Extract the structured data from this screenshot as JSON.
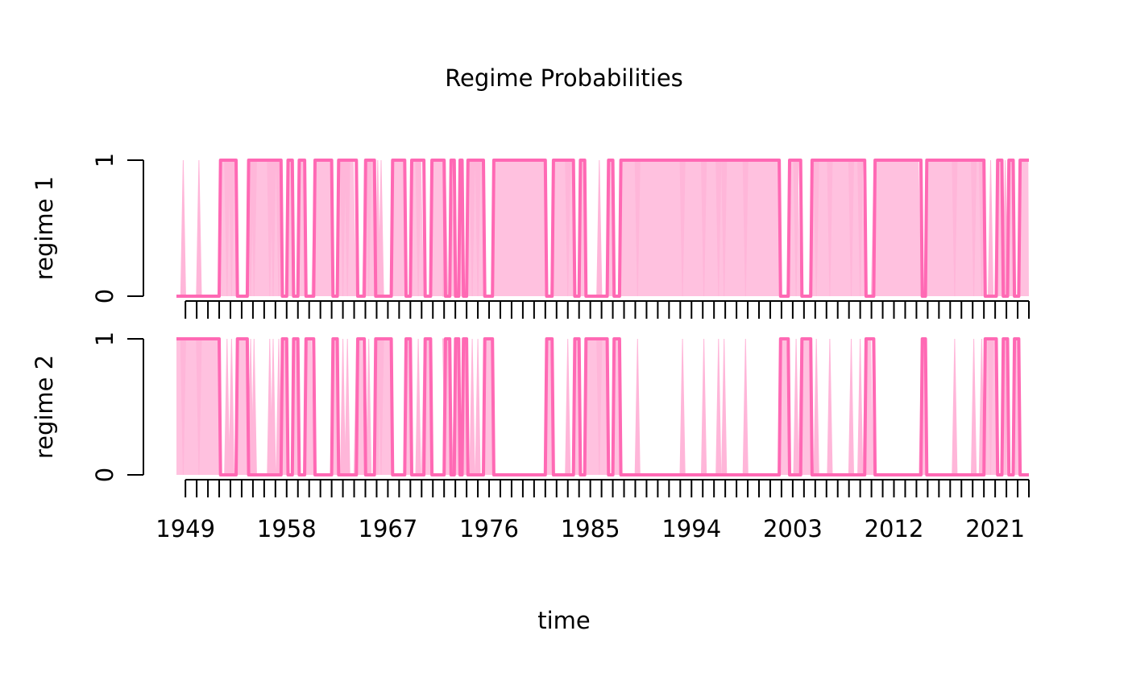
{
  "chart_data": {
    "type": "area",
    "title": "Regime Probabilities",
    "xlabel": "time",
    "x_range": [
      1948.2,
      2024.0
    ],
    "x_ticks": [
      1949,
      1958,
      1967,
      1976,
      1985,
      1994,
      2003,
      2012,
      2021
    ],
    "minor_tick_step": 1,
    "colors": {
      "line": "#ff69b4",
      "band": "#ffb6d9"
    },
    "panels": [
      {
        "ylabel": "regime  1",
        "ylim": [
          0,
          1
        ],
        "y_ticks": [
          0,
          1
        ],
        "intervals": [
          [
            1952.0,
            1953.5,
            1
          ],
          [
            1954.5,
            1957.5,
            1
          ],
          [
            1958.0,
            1958.5,
            1
          ],
          [
            1959.0,
            1959.6,
            1
          ],
          [
            1960.4,
            1962.0,
            1
          ],
          [
            1962.5,
            1964.2,
            1
          ],
          [
            1964.9,
            1965.8,
            1
          ],
          [
            1967.3,
            1968.5,
            1
          ],
          [
            1969.0,
            1970.2,
            1
          ],
          [
            1970.8,
            1972.0,
            1
          ],
          [
            1972.5,
            1972.9,
            1
          ],
          [
            1973.3,
            1973.6,
            1
          ],
          [
            1974.0,
            1975.5,
            1
          ],
          [
            1976.3,
            1981.0,
            1
          ],
          [
            1981.6,
            1983.5,
            1
          ],
          [
            1984.0,
            1984.5,
            1
          ],
          [
            1986.5,
            1987.0,
            1
          ],
          [
            1987.6,
            2001.8,
            1
          ],
          [
            2002.6,
            2003.7,
            1
          ],
          [
            2004.6,
            2009.4,
            1
          ],
          [
            2010.2,
            2014.4,
            1
          ],
          [
            2014.8,
            2020.0,
            1
          ],
          [
            2021.1,
            2021.6,
            1
          ],
          [
            2022.1,
            2022.6,
            1
          ],
          [
            2023.1,
            2024.0,
            1
          ]
        ],
        "band_spikes": [
          [
            1948.8,
            1
          ],
          [
            1950.2,
            1
          ],
          [
            1952.7,
            0
          ],
          [
            1953.1,
            0
          ],
          [
            1954.8,
            0
          ],
          [
            1955.1,
            0
          ],
          [
            1956.5,
            0
          ],
          [
            1956.8,
            0
          ],
          [
            1957.3,
            0
          ],
          [
            1963.0,
            0
          ],
          [
            1963.4,
            0
          ],
          [
            1965.3,
            0
          ],
          [
            1966.1,
            1
          ],
          [
            1966.4,
            1
          ],
          [
            1969.7,
            0
          ],
          [
            1972.1,
            1
          ],
          [
            1974.5,
            0
          ],
          [
            1975.0,
            0
          ],
          [
            1983.0,
            0
          ],
          [
            1985.8,
            1
          ],
          [
            1989.2,
            0
          ],
          [
            1993.2,
            0
          ],
          [
            1995.1,
            0
          ],
          [
            1996.4,
            0
          ],
          [
            1996.9,
            0
          ],
          [
            1998.8,
            0
          ],
          [
            2003.3,
            0
          ],
          [
            2005.1,
            0
          ],
          [
            2006.3,
            0
          ],
          [
            2008.2,
            0
          ],
          [
            2009.0,
            0
          ],
          [
            2017.4,
            0
          ],
          [
            2019.1,
            0
          ],
          [
            2019.8,
            0
          ],
          [
            2020.6,
            1
          ],
          [
            2021.9,
            1
          ]
        ]
      },
      {
        "ylabel": "regime  2",
        "ylim": [
          0,
          1
        ],
        "y_ticks": [
          0,
          1
        ],
        "intervals": [
          [
            1948.2,
            1952.0,
            1
          ],
          [
            1953.5,
            1954.5,
            1
          ],
          [
            1957.5,
            1958.0,
            1
          ],
          [
            1958.5,
            1959.0,
            1
          ],
          [
            1959.6,
            1960.4,
            1
          ],
          [
            1962.0,
            1962.5,
            1
          ],
          [
            1964.2,
            1964.9,
            1
          ],
          [
            1965.8,
            1967.3,
            1
          ],
          [
            1968.5,
            1969.0,
            1
          ],
          [
            1970.2,
            1970.8,
            1
          ],
          [
            1972.0,
            1972.5,
            1
          ],
          [
            1972.9,
            1973.3,
            1
          ],
          [
            1973.6,
            1974.0,
            1
          ],
          [
            1975.5,
            1976.3,
            1
          ],
          [
            1981.0,
            1981.6,
            1
          ],
          [
            1983.5,
            1984.0,
            1
          ],
          [
            1984.5,
            1986.5,
            1
          ],
          [
            1987.0,
            1987.6,
            1
          ],
          [
            2001.8,
            2002.6,
            1
          ],
          [
            2003.7,
            2004.6,
            1
          ],
          [
            2009.4,
            2010.2,
            1
          ],
          [
            2014.4,
            2014.8,
            1
          ],
          [
            2020.0,
            2021.1,
            1
          ],
          [
            2021.6,
            2022.1,
            1
          ],
          [
            2022.6,
            2023.1,
            1
          ]
        ],
        "band_spikes": [
          [
            1948.8,
            0
          ],
          [
            1950.2,
            0
          ],
          [
            1952.7,
            1
          ],
          [
            1953.1,
            1
          ],
          [
            1954.8,
            1
          ],
          [
            1955.1,
            1
          ],
          [
            1956.5,
            1
          ],
          [
            1956.8,
            1
          ],
          [
            1957.3,
            1
          ],
          [
            1963.0,
            1
          ],
          [
            1963.4,
            1
          ],
          [
            1965.3,
            1
          ],
          [
            1966.1,
            0
          ],
          [
            1966.4,
            0
          ],
          [
            1969.7,
            1
          ],
          [
            1972.1,
            0
          ],
          [
            1974.5,
            1
          ],
          [
            1975.0,
            1
          ],
          [
            1983.0,
            1
          ],
          [
            1985.8,
            0
          ],
          [
            1989.2,
            1
          ],
          [
            1993.2,
            1
          ],
          [
            1995.1,
            1
          ],
          [
            1996.4,
            1
          ],
          [
            1996.9,
            1
          ],
          [
            1998.8,
            1
          ],
          [
            2003.3,
            1
          ],
          [
            2005.1,
            1
          ],
          [
            2006.3,
            1
          ],
          [
            2008.2,
            1
          ],
          [
            2009.0,
            1
          ],
          [
            2017.4,
            1
          ],
          [
            2019.1,
            1
          ],
          [
            2019.8,
            1
          ],
          [
            2020.6,
            0
          ],
          [
            2021.9,
            0
          ]
        ]
      }
    ]
  }
}
